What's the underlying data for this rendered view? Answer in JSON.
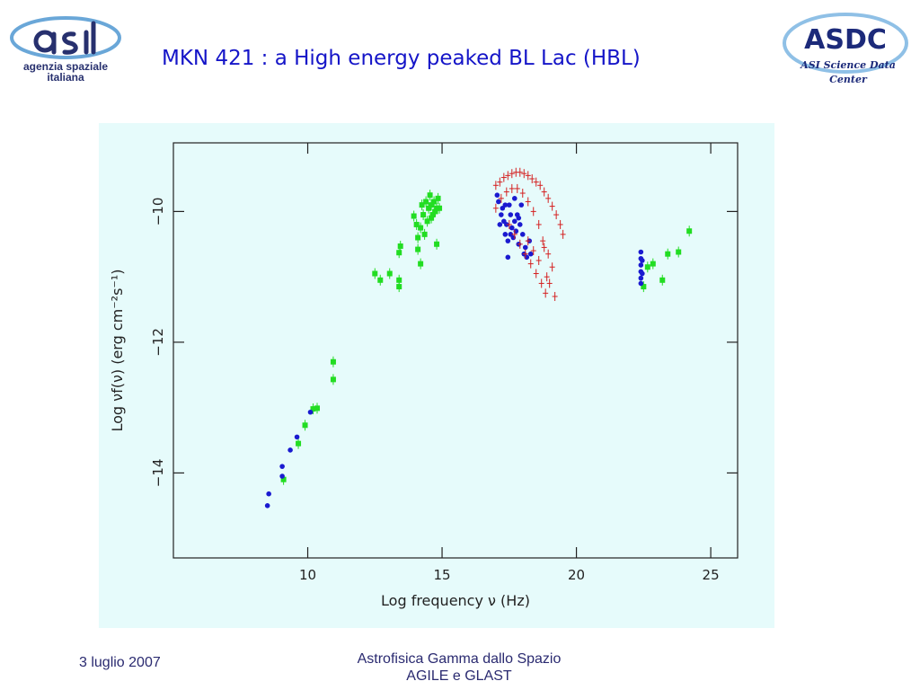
{
  "slide": {
    "title": "MKN 421 : a High energy peaked  BL Lac (HBL)",
    "footer_date": "3 luglio 2007",
    "footer_course_line1": "Astrofisica Gamma dallo Spazio",
    "footer_course_line2": "AGILE e GLAST"
  },
  "logos": {
    "asi_lines": [
      "agenzia spaziale",
      "italiana"
    ],
    "asdc_title": "ASDC",
    "asdc_lines": [
      "ASI Science Data",
      "Center"
    ]
  },
  "colors": {
    "panel_bg": "#e6fbfb",
    "green": "#22dd22",
    "blue": "#1a1ad0",
    "red": "#d42020",
    "title": "#1515c8"
  },
  "chart_data": {
    "type": "scatter",
    "title": "",
    "xlabel": "Log frequency ν (Hz)",
    "ylabel": "Log νf(ν) (erg cm⁻²s⁻¹)",
    "xlim": [
      5,
      26
    ],
    "ylim": [
      -15.3,
      -8.95
    ],
    "xticks": [
      10,
      15,
      20,
      25
    ],
    "yticks": [
      -10,
      -12,
      -14
    ],
    "xtick_labels": [
      "10",
      "15",
      "20",
      "25"
    ],
    "ytick_labels": [
      "−10",
      "−12",
      "−14"
    ],
    "grid": false,
    "legend": "none",
    "series": [
      {
        "color": "green",
        "points": [
          [
            9.1,
            -14.1
          ],
          [
            9.65,
            -13.55
          ],
          [
            9.9,
            -13.27
          ],
          [
            10.2,
            -13.02
          ],
          [
            10.35,
            -13.01
          ],
          [
            10.95,
            -12.3
          ],
          [
            10.95,
            -12.57
          ],
          [
            12.5,
            -10.95
          ],
          [
            12.7,
            -11.05
          ],
          [
            13.05,
            -10.95
          ],
          [
            13.4,
            -11.05
          ],
          [
            13.4,
            -11.15
          ],
          [
            13.4,
            -10.63
          ],
          [
            13.45,
            -10.53
          ],
          [
            13.95,
            -10.07
          ],
          [
            14.1,
            -10.58
          ],
          [
            14.1,
            -10.4
          ],
          [
            14.2,
            -10.25
          ],
          [
            14.2,
            -10.8
          ],
          [
            14.3,
            -10.05
          ],
          [
            14.35,
            -10.35
          ],
          [
            14.4,
            -9.85
          ],
          [
            14.45,
            -10.15
          ],
          [
            14.5,
            -9.95
          ],
          [
            14.55,
            -9.75
          ],
          [
            14.6,
            -10.1
          ],
          [
            14.6,
            -9.9
          ],
          [
            14.7,
            -9.85
          ],
          [
            14.75,
            -10.0
          ],
          [
            14.8,
            -9.95
          ],
          [
            14.8,
            -10.5
          ],
          [
            14.85,
            -9.8
          ],
          [
            14.9,
            -9.95
          ],
          [
            14.25,
            -9.9
          ],
          [
            14.05,
            -10.2
          ],
          [
            14.65,
            -10.05
          ],
          [
            22.5,
            -11.15
          ],
          [
            22.65,
            -10.85
          ],
          [
            22.85,
            -10.8
          ],
          [
            23.2,
            -11.05
          ],
          [
            23.4,
            -10.65
          ],
          [
            23.8,
            -10.62
          ],
          [
            24.2,
            -10.3
          ]
        ]
      },
      {
        "color": "blue",
        "points": [
          [
            8.5,
            -14.5
          ],
          [
            8.55,
            -14.32
          ],
          [
            9.05,
            -13.9
          ],
          [
            9.05,
            -14.05
          ],
          [
            9.35,
            -13.65
          ],
          [
            9.6,
            -13.45
          ],
          [
            10.1,
            -13.07
          ],
          [
            17.05,
            -9.75
          ],
          [
            17.1,
            -9.85
          ],
          [
            17.2,
            -10.05
          ],
          [
            17.25,
            -9.95
          ],
          [
            17.3,
            -10.15
          ],
          [
            17.35,
            -10.35
          ],
          [
            17.4,
            -10.2
          ],
          [
            17.45,
            -10.45
          ],
          [
            17.45,
            -10.7
          ],
          [
            17.5,
            -9.9
          ],
          [
            17.55,
            -10.05
          ],
          [
            17.6,
            -10.25
          ],
          [
            17.65,
            -10.4
          ],
          [
            17.7,
            -10.15
          ],
          [
            17.7,
            -9.8
          ],
          [
            17.75,
            -10.3
          ],
          [
            17.8,
            -10.05
          ],
          [
            17.85,
            -10.5
          ],
          [
            17.9,
            -10.2
          ],
          [
            17.95,
            -9.9
          ],
          [
            18.0,
            -10.35
          ],
          [
            18.05,
            -10.65
          ],
          [
            18.1,
            -10.55
          ],
          [
            18.15,
            -10.7
          ],
          [
            18.25,
            -10.45
          ],
          [
            18.3,
            -10.65
          ],
          [
            17.15,
            -10.2
          ],
          [
            17.35,
            -9.9
          ],
          [
            17.55,
            -10.35
          ],
          [
            17.85,
            -10.1
          ],
          [
            22.4,
            -10.62
          ],
          [
            22.4,
            -10.72
          ],
          [
            22.4,
            -10.82
          ],
          [
            22.4,
            -10.92
          ],
          [
            22.4,
            -11.02
          ],
          [
            22.4,
            -11.1
          ],
          [
            22.45,
            -10.75
          ],
          [
            22.45,
            -10.95
          ]
        ]
      },
      {
        "color": "red",
        "points": [
          [
            17.0,
            -9.6
          ],
          [
            17.15,
            -9.55
          ],
          [
            17.3,
            -9.48
          ],
          [
            17.45,
            -9.45
          ],
          [
            17.6,
            -9.42
          ],
          [
            17.75,
            -9.4
          ],
          [
            17.9,
            -9.4
          ],
          [
            18.05,
            -9.42
          ],
          [
            18.2,
            -9.45
          ],
          [
            18.35,
            -9.5
          ],
          [
            18.5,
            -9.55
          ],
          [
            18.65,
            -9.6
          ],
          [
            18.8,
            -9.7
          ],
          [
            18.95,
            -9.8
          ],
          [
            19.1,
            -9.92
          ],
          [
            19.25,
            -10.05
          ],
          [
            19.4,
            -10.2
          ],
          [
            19.5,
            -10.35
          ],
          [
            17.0,
            -9.95
          ],
          [
            17.2,
            -9.8
          ],
          [
            17.4,
            -9.7
          ],
          [
            17.6,
            -9.65
          ],
          [
            17.8,
            -9.65
          ],
          [
            18.0,
            -9.72
          ],
          [
            18.2,
            -9.85
          ],
          [
            18.4,
            -10.0
          ],
          [
            18.6,
            -10.2
          ],
          [
            18.75,
            -10.45
          ],
          [
            17.5,
            -10.2
          ],
          [
            17.7,
            -10.35
          ],
          [
            17.9,
            -10.5
          ],
          [
            18.1,
            -10.65
          ],
          [
            18.3,
            -10.8
          ],
          [
            18.5,
            -10.95
          ],
          [
            18.7,
            -11.1
          ],
          [
            18.85,
            -11.25
          ],
          [
            19.0,
            -11.1
          ],
          [
            19.1,
            -10.85
          ],
          [
            18.95,
            -10.65
          ],
          [
            18.8,
            -10.55
          ],
          [
            18.6,
            -10.75
          ],
          [
            18.4,
            -10.6
          ],
          [
            18.2,
            -10.45
          ],
          [
            19.2,
            -11.3
          ],
          [
            18.9,
            -11.0
          ]
        ]
      }
    ]
  }
}
